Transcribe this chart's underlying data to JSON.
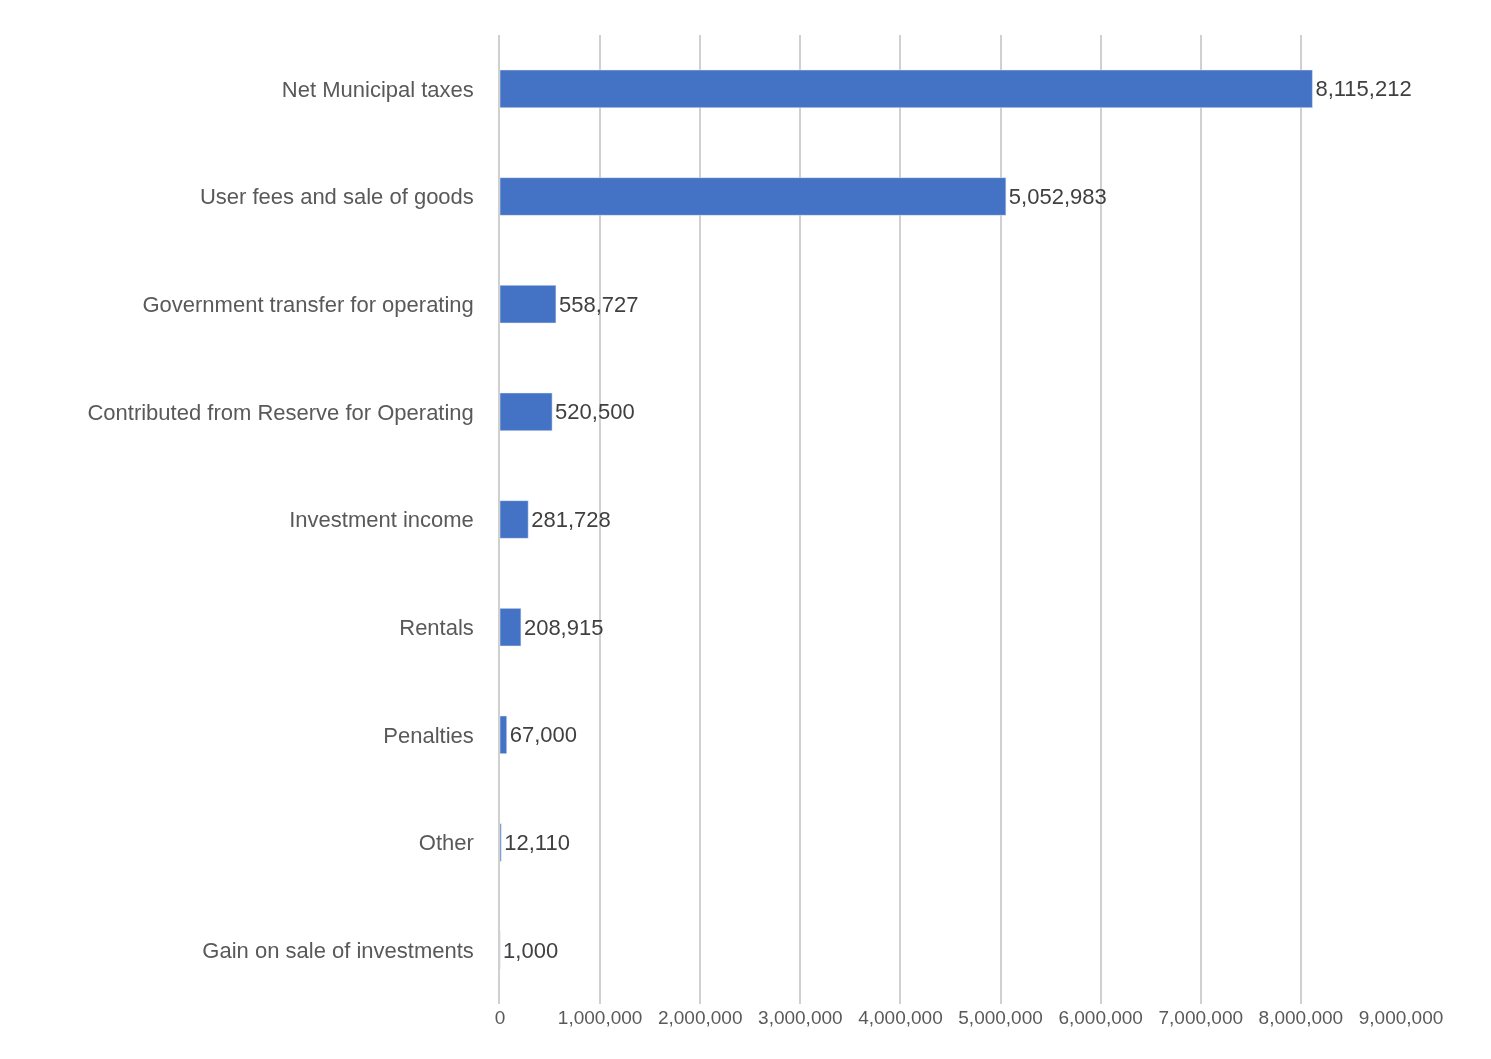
{
  "chart_data": {
    "type": "bar",
    "orientation": "horizontal",
    "categories": [
      "Net Municipal taxes",
      "User fees and sale of goods",
      "Government transfer for operating",
      "Contributed from Reserve for Operating",
      "Investment income",
      "Rentals",
      "Penalties",
      "Other",
      "Gain on sale of investments"
    ],
    "values": [
      8115212,
      5052983,
      558727,
      520500,
      281728,
      208915,
      67000,
      12110,
      1000
    ],
    "color": "#4472c4",
    "xlim": [
      0,
      9000000
    ],
    "xticks": [
      0,
      {
        "value": 1000000,
        "label": "1,000,000"
      },
      {
        "value": 2000000,
        "label": "2,000,000"
      },
      {
        "value": 3000000,
        "label": "3,000,000"
      },
      {
        "value": 4000000,
        "label": "4,000,000"
      },
      {
        "value": 5000000,
        "label": "5,000,000"
      },
      {
        "value": 6000000,
        "label": "6,000,000"
      },
      {
        "value": 7000000,
        "label": "7,000,000"
      },
      {
        "value": 8000000,
        "label": "8,000,000"
      },
      {
        "value": 9000000,
        "label": "9,000,000"
      }
    ],
    "value_labels": [
      "8,115,212",
      "5,052,983",
      "558,727",
      "520,500",
      "281,728",
      "208,915",
      "67,000",
      "12,110",
      "1,000"
    ],
    "grid": "x",
    "legend": false
  }
}
